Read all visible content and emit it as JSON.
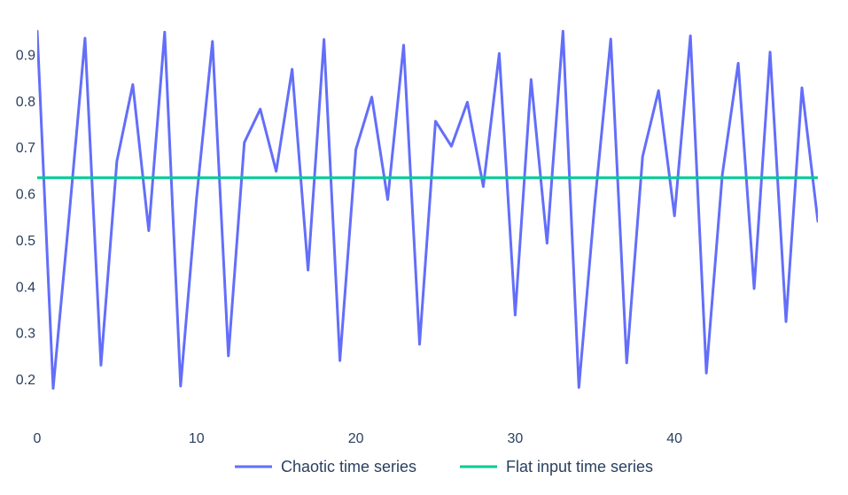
{
  "colors": {
    "background": "#ffffff",
    "tick_text": "#2a3f5f",
    "series_0": "#636efa",
    "series_1": "#00cc96"
  },
  "chart_data": {
    "type": "line",
    "title": "",
    "xlabel": "",
    "ylabel": "",
    "xlim": [
      0,
      49
    ],
    "ylim": [
      0.12,
      0.96
    ],
    "grid": false,
    "legend_position": "bottom-center",
    "x_ticks": [
      0,
      10,
      20,
      30,
      40
    ],
    "x_tick_labels": [
      "0",
      "10",
      "20",
      "30",
      "40"
    ],
    "y_ticks": [
      0.2,
      0.3,
      0.4,
      0.5,
      0.6,
      0.7,
      0.8,
      0.9
    ],
    "y_tick_labels": [
      "0.2",
      "0.3",
      "0.4",
      "0.5",
      "0.6",
      "0.7",
      "0.8",
      "0.9"
    ],
    "x": [
      0,
      1,
      2,
      3,
      4,
      5,
      6,
      7,
      8,
      9,
      10,
      11,
      12,
      13,
      14,
      15,
      16,
      17,
      18,
      19,
      20,
      21,
      22,
      23,
      24,
      25,
      26,
      27,
      28,
      29,
      30,
      31,
      32,
      33,
      34,
      35,
      36,
      37,
      38,
      39,
      40,
      41,
      42,
      43,
      44,
      45,
      46,
      47,
      48,
      49
    ],
    "series": [
      {
        "name": "Chaotic time series",
        "color": "#636efa",
        "values": [
          0.95,
          0.18,
          0.55,
          0.935,
          0.23,
          0.67,
          0.835,
          0.52,
          0.948,
          0.185,
          0.59,
          0.928,
          0.25,
          0.71,
          0.782,
          0.648,
          0.868,
          0.435,
          0.932,
          0.24,
          0.695,
          0.808,
          0.587,
          0.92,
          0.275,
          0.756,
          0.702,
          0.797,
          0.615,
          0.902,
          0.338,
          0.846,
          0.493,
          0.95,
          0.182,
          0.58,
          0.933,
          0.235,
          0.68,
          0.822,
          0.552,
          0.94,
          0.213,
          0.64,
          0.881,
          0.395,
          0.905,
          0.324,
          0.828,
          0.54
        ]
      },
      {
        "name": "Flat input time series",
        "color": "#00cc96",
        "values": [
          0.634,
          0.634,
          0.634,
          0.634,
          0.634,
          0.634,
          0.634,
          0.634,
          0.634,
          0.634,
          0.634,
          0.634,
          0.634,
          0.634,
          0.634,
          0.634,
          0.634,
          0.634,
          0.634,
          0.634,
          0.634,
          0.634,
          0.634,
          0.634,
          0.634,
          0.634,
          0.634,
          0.634,
          0.634,
          0.634,
          0.634,
          0.634,
          0.634,
          0.634,
          0.634,
          0.634,
          0.634,
          0.634,
          0.634,
          0.634,
          0.634,
          0.634,
          0.634,
          0.634,
          0.634,
          0.634,
          0.634,
          0.634,
          0.634,
          0.634
        ]
      }
    ]
  }
}
